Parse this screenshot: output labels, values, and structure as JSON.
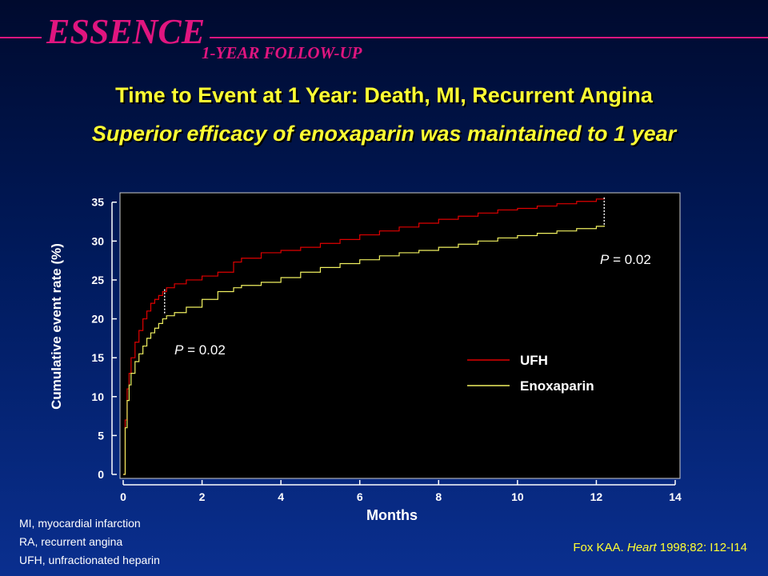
{
  "brand": {
    "title": "ESSENCE",
    "subtitle": "1-YEAR FOLLOW-UP"
  },
  "headline": {
    "title": "Time to Event at 1 Year: Death, MI, Recurrent Angina",
    "subtitle": "Superior efficacy of enoxaparin was maintained to 1 year"
  },
  "colors": {
    "ufh": "#e00000",
    "enox": "#f0f060",
    "accent": "#e0157f",
    "headline": "#ffff33"
  },
  "chart_data": {
    "type": "line",
    "xlabel": "Months",
    "ylabel": "Cumulative event rate (%)",
    "xlim": [
      0,
      14
    ],
    "ylim": [
      0,
      36
    ],
    "xticks": [
      0,
      2,
      4,
      6,
      8,
      10,
      12,
      14
    ],
    "yticks": [
      0,
      5,
      10,
      15,
      20,
      25,
      30,
      35
    ],
    "grid": false,
    "legend_position": "right",
    "series": [
      {
        "name": "UFH",
        "x": [
          0,
          0.05,
          0.1,
          0.15,
          0.2,
          0.3,
          0.4,
          0.5,
          0.6,
          0.7,
          0.8,
          0.9,
          1.0,
          1.1,
          1.3,
          1.6,
          2.0,
          2.4,
          2.8,
          3.0,
          3.5,
          4.0,
          4.5,
          5.0,
          5.5,
          6.0,
          6.5,
          7.0,
          7.5,
          8.0,
          8.5,
          9.0,
          9.5,
          10.0,
          10.5,
          11.0,
          11.5,
          12.0,
          12.2
        ],
        "y": [
          0,
          7,
          11,
          13,
          15,
          17,
          18.5,
          20,
          21,
          22,
          22.5,
          23,
          23.5,
          24,
          24.5,
          25,
          25.5,
          26,
          27.3,
          27.8,
          28.5,
          28.8,
          29.2,
          29.7,
          30.2,
          30.8,
          31.3,
          31.8,
          32.3,
          32.8,
          33.2,
          33.6,
          34.0,
          34.2,
          34.5,
          34.8,
          35.1,
          35.4,
          35.6
        ]
      },
      {
        "name": "Enoxaparin",
        "x": [
          0,
          0.05,
          0.1,
          0.15,
          0.2,
          0.3,
          0.4,
          0.5,
          0.6,
          0.7,
          0.8,
          0.9,
          1.0,
          1.1,
          1.3,
          1.6,
          2.0,
          2.4,
          2.8,
          3.0,
          3.5,
          4.0,
          4.5,
          5.0,
          5.5,
          6.0,
          6.5,
          7.0,
          7.5,
          8.0,
          8.5,
          9.0,
          9.5,
          10.0,
          10.5,
          11.0,
          11.5,
          12.0,
          12.2
        ],
        "y": [
          0,
          6,
          9.5,
          11.5,
          13,
          14.5,
          15.5,
          16.5,
          17.5,
          18.2,
          18.8,
          19.4,
          20,
          20.4,
          20.8,
          21.5,
          22.5,
          23.5,
          24,
          24.3,
          24.7,
          25.3,
          26,
          26.6,
          27.1,
          27.6,
          28.1,
          28.5,
          28.8,
          29.2,
          29.6,
          30.0,
          30.4,
          30.7,
          31.0,
          31.3,
          31.6,
          31.9,
          32.0
        ]
      }
    ],
    "annotations": [
      {
        "x": 1.05,
        "y_low": 20.5,
        "y_high": 23.8,
        "label_prefix": "P",
        "label_value": " = 0.02"
      },
      {
        "x": 12.2,
        "y_low": 32.0,
        "y_high": 35.6,
        "label_prefix": "P",
        "label_value": " = 0.02"
      }
    ]
  },
  "footnotes": [
    "MI, myocardial infarction",
    "RA, recurrent angina",
    "UFH, unfractionated heparin"
  ],
  "citation": {
    "prefix": "Fox KAA. ",
    "journal": "Heart",
    "suffix": " 1998;82: I12-I14"
  }
}
